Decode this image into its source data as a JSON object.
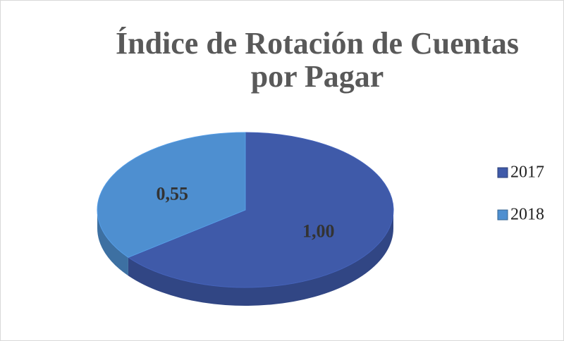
{
  "chart_data": {
    "type": "pie",
    "title": "Índice de Rotación de Cuentas por Pagar",
    "categories": [
      "2017",
      "2018"
    ],
    "values": [
      1.0,
      0.55
    ],
    "value_labels": [
      "1,00",
      "0,55"
    ],
    "colors": [
      "#3f5aa9",
      "#4e8fd0"
    ],
    "legend": "right"
  }
}
